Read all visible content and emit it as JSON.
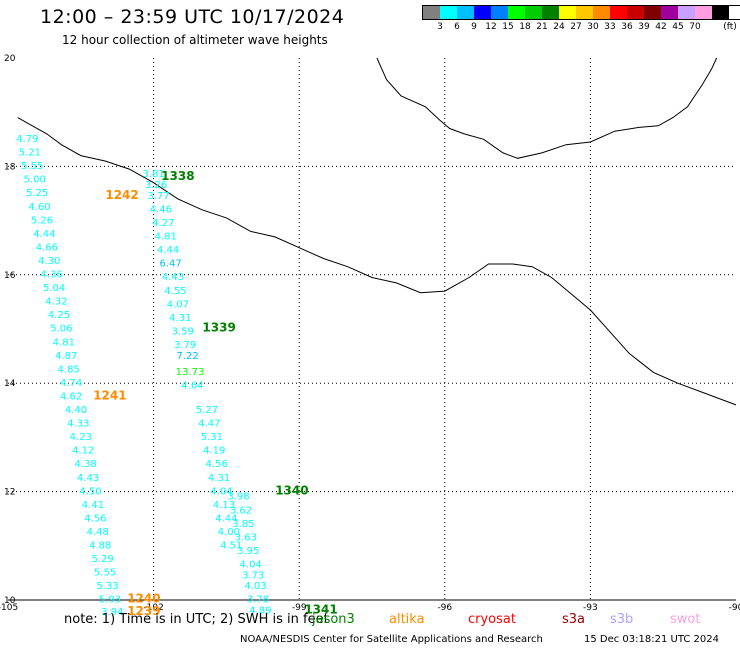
{
  "header": {
    "title": "12:00 – 23:59 UTC 10/17/2024",
    "subtitle": "12 hour collection of altimeter wave heights"
  },
  "colorbar": {
    "unit": "(ft)",
    "bins": [
      {
        "label": "",
        "color": "#808080"
      },
      {
        "label": "3",
        "color": "#00ffff"
      },
      {
        "label": "6",
        "color": "#00bfff"
      },
      {
        "label": "9",
        "color": "#0000ff"
      },
      {
        "label": "12",
        "color": "#0080ff"
      },
      {
        "label": "15",
        "color": "#00ff00"
      },
      {
        "label": "18",
        "color": "#00cc00"
      },
      {
        "label": "21",
        "color": "#008000"
      },
      {
        "label": "24",
        "color": "#ffff00"
      },
      {
        "label": "27",
        "color": "#ffc800"
      },
      {
        "label": "30",
        "color": "#ff8c00"
      },
      {
        "label": "33",
        "color": "#ff0000"
      },
      {
        "label": "36",
        "color": "#c80000"
      },
      {
        "label": "39",
        "color": "#800000"
      },
      {
        "label": "42",
        "color": "#a000a0"
      },
      {
        "label": "45",
        "color": "#c8a0ff"
      },
      {
        "label": "70",
        "color": "#ff9ee0"
      },
      {
        "label": "",
        "color": "#000000"
      }
    ]
  },
  "map": {
    "lon_range": [
      -105,
      -90
    ],
    "lat_range": [
      10,
      20
    ],
    "lon_ticks": [
      -105,
      -102,
      -99,
      -96,
      -93,
      -90
    ],
    "lat_ticks": [
      10,
      12,
      14,
      16,
      18,
      20
    ],
    "lon_tick_labels": [
      "-105",
      "-102",
      "-99",
      "-96",
      "-93",
      "-90"
    ],
    "lat_tick_labels": [
      "10",
      "12",
      "14",
      "16",
      "18",
      "20"
    ],
    "coastline_lonlat": [
      [
        -104.8,
        18.9
      ],
      [
        -104.5,
        18.75
      ],
      [
        -104.2,
        18.6
      ],
      [
        -103.9,
        18.4
      ],
      [
        -103.5,
        18.2
      ],
      [
        -103.0,
        18.1
      ],
      [
        -102.5,
        17.95
      ],
      [
        -102.0,
        17.7
      ],
      [
        -101.5,
        17.4
      ],
      [
        -101.0,
        17.2
      ],
      [
        -100.5,
        17.05
      ],
      [
        -100.0,
        16.8
      ],
      [
        -99.5,
        16.7
      ],
      [
        -99.0,
        16.5
      ],
      [
        -98.5,
        16.3
      ],
      [
        -98.0,
        16.15
      ],
      [
        -97.5,
        15.95
      ],
      [
        -97.0,
        15.85
      ],
      [
        -96.5,
        15.67
      ],
      [
        -96.0,
        15.7
      ],
      [
        -95.5,
        15.95
      ],
      [
        -95.1,
        16.2
      ],
      [
        -94.6,
        16.2
      ],
      [
        -94.2,
        16.15
      ],
      [
        -93.8,
        15.95
      ],
      [
        -93.4,
        15.65
      ],
      [
        -93.0,
        15.35
      ],
      [
        -92.6,
        14.95
      ],
      [
        -92.2,
        14.55
      ],
      [
        -91.7,
        14.2
      ],
      [
        -91.2,
        14.0
      ],
      [
        -90.6,
        13.8
      ],
      [
        -90.0,
        13.6
      ]
    ],
    "north_coast_lonlat": [
      [
        -97.4,
        20.0
      ],
      [
        -97.2,
        19.6
      ],
      [
        -96.9,
        19.3
      ],
      [
        -96.4,
        19.1
      ],
      [
        -96.1,
        18.85
      ],
      [
        -95.9,
        18.7
      ],
      [
        -95.6,
        18.6
      ],
      [
        -95.2,
        18.5
      ],
      [
        -94.8,
        18.25
      ],
      [
        -94.5,
        18.15
      ],
      [
        -94.0,
        18.25
      ],
      [
        -93.5,
        18.4
      ],
      [
        -93.0,
        18.45
      ],
      [
        -92.5,
        18.65
      ],
      [
        -92.0,
        18.72
      ],
      [
        -91.6,
        18.75
      ],
      [
        -91.3,
        18.9
      ],
      [
        -91.0,
        19.1
      ],
      [
        -90.7,
        19.5
      ],
      [
        -90.5,
        19.8
      ],
      [
        -90.4,
        20.0
      ]
    ]
  },
  "tracks": [
    {
      "id": "1242",
      "label": "1242",
      "mission": "altika",
      "label_pos": [
        -102.65,
        17.4
      ],
      "obs": [
        {
          "lon": -104.6,
          "lat": 18.45,
          "v": "4.79",
          "c": "#00ffff"
        },
        {
          "lon": -104.55,
          "lat": 18.2,
          "v": "5.21",
          "c": "#00ffff"
        },
        {
          "lon": -104.5,
          "lat": 17.95,
          "v": "5.55",
          "c": "#00ffff"
        },
        {
          "lon": -104.45,
          "lat": 17.7,
          "v": "5.00",
          "c": "#00ffff"
        },
        {
          "lon": -104.4,
          "lat": 17.45,
          "v": "5.25",
          "c": "#00ffff"
        },
        {
          "lon": -104.35,
          "lat": 17.2,
          "v": "4.60",
          "c": "#00ffff"
        },
        {
          "lon": -104.3,
          "lat": 16.95,
          "v": "5.26",
          "c": "#00ffff"
        },
        {
          "lon": -104.25,
          "lat": 16.7,
          "v": "4.44",
          "c": "#00ffff"
        },
        {
          "lon": -104.2,
          "lat": 16.45,
          "v": "4.66",
          "c": "#00ffff"
        },
        {
          "lon": -104.15,
          "lat": 16.2,
          "v": "4.30",
          "c": "#00ffff"
        },
        {
          "lon": -104.1,
          "lat": 15.95,
          "v": "4.36",
          "c": "#00ffff"
        },
        {
          "lon": -104.05,
          "lat": 15.7,
          "v": "5.04",
          "c": "#00ffff"
        },
        {
          "lon": -104.0,
          "lat": 15.45,
          "v": "4.32",
          "c": "#00ffff"
        },
        {
          "lon": -103.95,
          "lat": 15.2,
          "v": "4.25",
          "c": "#00ffff"
        },
        {
          "lon": -103.9,
          "lat": 14.95,
          "v": "5.06",
          "c": "#00ffff"
        },
        {
          "lon": -103.85,
          "lat": 14.7,
          "v": "4.81",
          "c": "#00ffff"
        },
        {
          "lon": -103.8,
          "lat": 14.45,
          "v": "4.87",
          "c": "#00ffff"
        },
        {
          "lon": -103.75,
          "lat": 14.2,
          "v": "4.85",
          "c": "#00ffff"
        },
        {
          "lon": -103.7,
          "lat": 13.95,
          "v": "4.74",
          "c": "#00ffff"
        }
      ]
    },
    {
      "id": "1241",
      "label": "1241",
      "mission": "altika",
      "label_pos": [
        -102.9,
        13.7
      ],
      "obs": [
        {
          "lon": -103.7,
          "lat": 13.7,
          "v": "4.62",
          "c": "#00ffff"
        },
        {
          "lon": -103.6,
          "lat": 13.45,
          "v": "4.40",
          "c": "#00ffff"
        },
        {
          "lon": -103.55,
          "lat": 13.2,
          "v": "4.33",
          "c": "#00ffff"
        },
        {
          "lon": -103.5,
          "lat": 12.95,
          "v": "4.23",
          "c": "#00ffff"
        },
        {
          "lon": -103.45,
          "lat": 12.7,
          "v": "4.12",
          "c": "#00ffff"
        },
        {
          "lon": -103.4,
          "lat": 12.45,
          "v": "4.38",
          "c": "#00ffff"
        },
        {
          "lon": -103.35,
          "lat": 12.2,
          "v": "4.43",
          "c": "#00ffff"
        },
        {
          "lon": -103.3,
          "lat": 11.95,
          "v": "4.50",
          "c": "#00ffff"
        },
        {
          "lon": -103.25,
          "lat": 11.7,
          "v": "4.41",
          "c": "#00ffff"
        },
        {
          "lon": -103.2,
          "lat": 11.45,
          "v": "4.56",
          "c": "#00ffff"
        },
        {
          "lon": -103.15,
          "lat": 11.2,
          "v": "4.48",
          "c": "#00ffff"
        },
        {
          "lon": -103.1,
          "lat": 10.95,
          "v": "4.88",
          "c": "#00ffff"
        },
        {
          "lon": -103.05,
          "lat": 10.7,
          "v": "5.29",
          "c": "#00ffff"
        },
        {
          "lon": -103.0,
          "lat": 10.45,
          "v": "5.55",
          "c": "#00ffff"
        },
        {
          "lon": -102.95,
          "lat": 10.2,
          "v": "5.33",
          "c": "#00ffff"
        },
        {
          "lon": -102.9,
          "lat": 9.95,
          "v": "5.93",
          "c": "#00ffff"
        },
        {
          "lon": -102.85,
          "lat": 9.72,
          "v": "3.94",
          "c": "#00ffff"
        }
      ]
    },
    {
      "id": "1240",
      "label": "1240",
      "mission": "altika",
      "label_pos": [
        -102.2,
        9.95
      ],
      "obs": []
    },
    {
      "id": "1239",
      "label": "1239",
      "mission": "altika",
      "label_pos": [
        -102.2,
        9.72
      ],
      "obs": []
    },
    {
      "id": "1338",
      "label": "1338",
      "mission": "jason3",
      "label_pos": [
        -101.5,
        17.75
      ],
      "obs": [
        {
          "lon": -102.0,
          "lat": 17.8,
          "v": "3.81",
          "c": "#00ffff"
        },
        {
          "lon": -101.95,
          "lat": 17.6,
          "v": "3.26",
          "c": "#00ffff"
        },
        {
          "lon": -101.9,
          "lat": 17.4,
          "v": "3.77",
          "c": "#00ffff"
        },
        {
          "lon": -101.85,
          "lat": 17.15,
          "v": "4.46",
          "c": "#00ffff"
        },
        {
          "lon": -101.8,
          "lat": 16.9,
          "v": "4.27",
          "c": "#00ffff"
        },
        {
          "lon": -101.75,
          "lat": 16.65,
          "v": "4.81",
          "c": "#00ffff"
        },
        {
          "lon": -101.7,
          "lat": 16.4,
          "v": "4.44",
          "c": "#00ffff"
        },
        {
          "lon": -101.65,
          "lat": 16.15,
          "v": "6.47",
          "c": "#00bfff"
        },
        {
          "lon": -101.6,
          "lat": 15.9,
          "v": "4.43",
          "c": "#00ffff"
        },
        {
          "lon": -101.55,
          "lat": 15.65,
          "v": "4.55",
          "c": "#00ffff"
        },
        {
          "lon": -101.5,
          "lat": 15.4,
          "v": "4.07",
          "c": "#00ffff"
        },
        {
          "lon": -101.45,
          "lat": 15.15,
          "v": "4.31",
          "c": "#00ffff"
        },
        {
          "lon": -101.4,
          "lat": 14.9,
          "v": "3.59",
          "c": "#00ffff"
        },
        {
          "lon": -101.35,
          "lat": 14.65,
          "v": "3.79",
          "c": "#00ffff"
        }
      ]
    },
    {
      "id": "1339",
      "label": "1339",
      "mission": "jason3",
      "label_pos": [
        -100.65,
        14.95
      ],
      "obs": [
        {
          "lon": -101.3,
          "lat": 14.45,
          "v": "7.22",
          "c": "#00bfff"
        },
        {
          "lon": -101.25,
          "lat": 14.15,
          "v": "13.73",
          "c": "#00ff00"
        },
        {
          "lon": -101.2,
          "lat": 13.9,
          "v": "4.64",
          "c": "#00ffff"
        },
        {
          "lon": -100.9,
          "lat": 13.45,
          "v": "5.27",
          "c": "#00ffff"
        },
        {
          "lon": -100.85,
          "lat": 13.2,
          "v": "4.47",
          "c": "#00ffff"
        },
        {
          "lon": -100.8,
          "lat": 12.95,
          "v": "5.31",
          "c": "#00ffff"
        },
        {
          "lon": -100.75,
          "lat": 12.7,
          "v": "4.19",
          "c": "#00ffff"
        },
        {
          "lon": -100.7,
          "lat": 12.45,
          "v": "4.56",
          "c": "#00ffff"
        },
        {
          "lon": -100.65,
          "lat": 12.2,
          "v": "4.31",
          "c": "#00ffff"
        },
        {
          "lon": -100.6,
          "lat": 11.95,
          "v": "4.04",
          "c": "#00ffff"
        },
        {
          "lon": -100.55,
          "lat": 11.7,
          "v": "4.13",
          "c": "#00ffff"
        },
        {
          "lon": -100.5,
          "lat": 11.45,
          "v": "4.44",
          "c": "#00ffff"
        },
        {
          "lon": -100.45,
          "lat": 11.2,
          "v": "4.00",
          "c": "#00ffff"
        },
        {
          "lon": -100.4,
          "lat": 10.95,
          "v": "4.51",
          "c": "#00ffff"
        }
      ]
    },
    {
      "id": "1340",
      "label": "1340",
      "mission": "jason3",
      "label_pos": [
        -99.15,
        11.95
      ],
      "obs": [
        {
          "lon": -100.25,
          "lat": 11.85,
          "v": "3.98",
          "c": "#00ffff"
        },
        {
          "lon": -100.2,
          "lat": 11.6,
          "v": "3.62",
          "c": "#00ffff"
        },
        {
          "lon": -100.15,
          "lat": 11.35,
          "v": "3.85",
          "c": "#00ffff"
        },
        {
          "lon": -100.1,
          "lat": 11.1,
          "v": "3.63",
          "c": "#00ffff"
        },
        {
          "lon": -100.05,
          "lat": 10.85,
          "v": "3.95",
          "c": "#00ffff"
        },
        {
          "lon": -100.0,
          "lat": 10.6,
          "v": "4.04",
          "c": "#00ffff"
        },
        {
          "lon": -99.95,
          "lat": 10.4,
          "v": "3.73",
          "c": "#00ffff"
        },
        {
          "lon": -99.9,
          "lat": 10.2,
          "v": "4.03",
          "c": "#00ffff"
        },
        {
          "lon": -99.85,
          "lat": 9.95,
          "v": "3.78",
          "c": "#00ffff"
        },
        {
          "lon": -99.8,
          "lat": 9.75,
          "v": "4.89",
          "c": "#00ffff"
        }
      ]
    },
    {
      "id": "1341",
      "label": "1341",
      "mission": "jason3",
      "label_pos": [
        -98.55,
        9.75
      ],
      "obs": []
    }
  ],
  "mission_colors": {
    "jason3": "#008000",
    "altika": "#ff8c00",
    "cryosat": "#ff0000",
    "s3a": "#a00000",
    "s3b": "#b0a0ff",
    "swot": "#ff9ee0"
  },
  "footer": {
    "note": "note:  1) Time is in UTC;  2) SWH is in feet",
    "legend": [
      {
        "key": "jason3",
        "label": "jason3"
      },
      {
        "key": "altika",
        "label": "altika"
      },
      {
        "key": "cryosat",
        "label": "cryosat"
      },
      {
        "key": "s3a",
        "label": "s3a"
      },
      {
        "key": "s3b",
        "label": "s3b"
      },
      {
        "key": "swot",
        "label": "swot"
      }
    ],
    "credit": "NOAA/NESDIS Center for Satellite Applications and Research",
    "timestamp": "15 Dec 03:18:21 UTC 2024"
  }
}
